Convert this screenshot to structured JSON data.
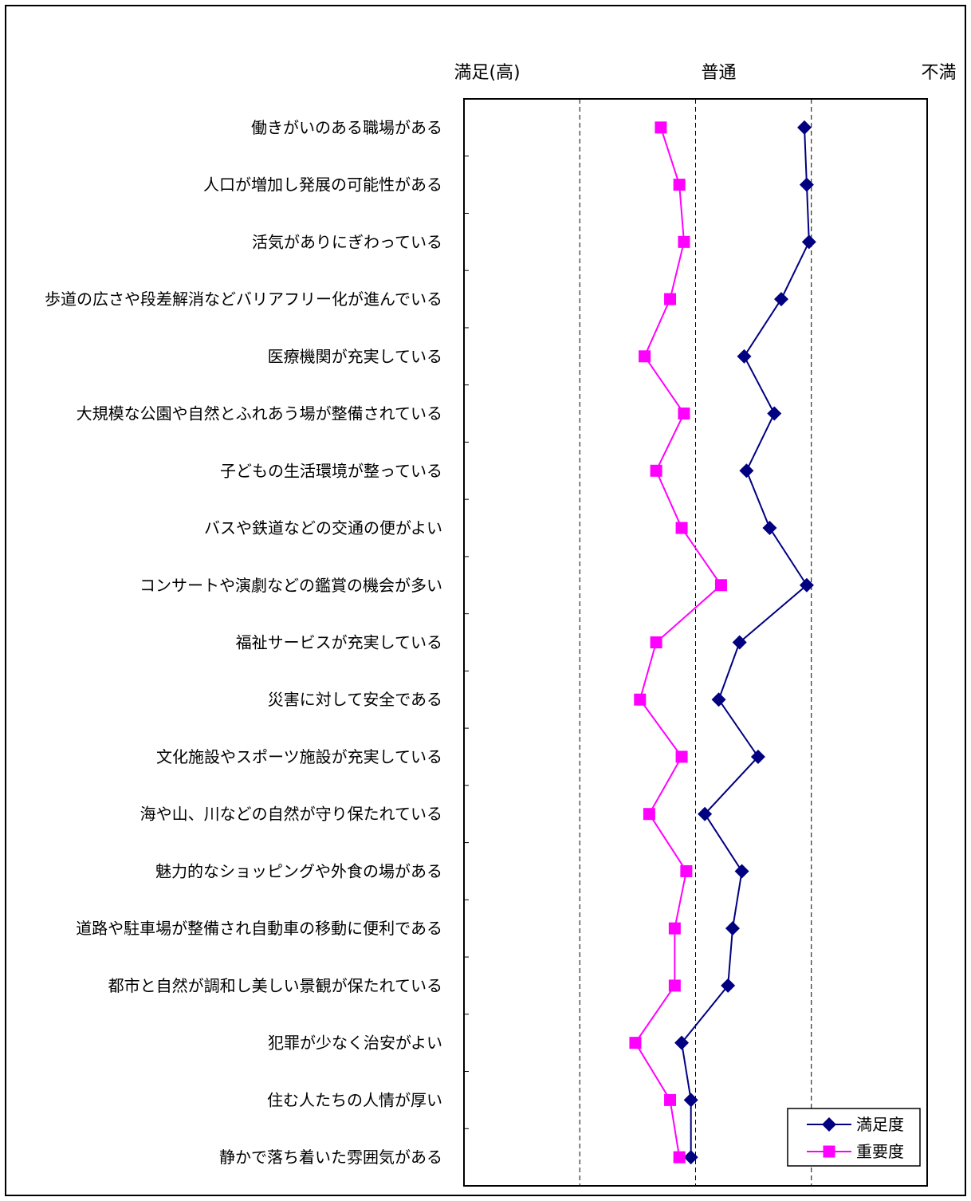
{
  "chart_data": {
    "type": "line",
    "orientation": "horizontal-value-axis",
    "scale_labels": {
      "left": "満足(高)",
      "middle": "普通",
      "right": "不満"
    },
    "xlim": [
      -1,
      1
    ],
    "grid": "dashed vertical",
    "categories": [
      "働きがいのある職場がある",
      "人口が増加し発展の可能性がある",
      "活気がありにぎわっている",
      "歩道の広さや段差解消などバリアフリー化が進んでいる",
      "医療機関が充実している",
      "大規模な公園や自然とふれあう場が整備されている",
      "子どもの生活環境が整っている",
      "バスや鉄道などの交通の便がよい",
      "コンサートや演劇などの鑑賞の機会が多い",
      "福祉サービスが充実している",
      "災害に対して安全である",
      "文化施設やスポーツ施設が充実している",
      "海や山、川などの自然が守り保たれている",
      "魅力的なショッピングや外食の場がある",
      "道路や駐車場が整備され自動車の移動に便利である",
      "都市と自然が調和し美しい景観が保たれている",
      "犯罪が少なく治安がよい",
      "住む人たちの人情が厚い",
      "静かで落ち着いた雰囲気がある"
    ],
    "series": [
      {
        "name": "満足度",
        "color": "#000080",
        "marker": "diamond",
        "values": [
          0.47,
          0.48,
          0.49,
          0.37,
          0.21,
          0.34,
          0.22,
          0.32,
          0.48,
          0.19,
          0.1,
          0.27,
          0.04,
          0.2,
          0.16,
          0.14,
          -0.06,
          -0.02,
          -0.02
        ]
      },
      {
        "name": "重要度",
        "color": "#ff00ff",
        "marker": "square",
        "values": [
          -0.15,
          -0.07,
          -0.05,
          -0.11,
          -0.22,
          -0.05,
          -0.17,
          -0.06,
          0.11,
          -0.17,
          -0.24,
          -0.06,
          -0.2,
          -0.04,
          -0.09,
          -0.09,
          -0.26,
          -0.11,
          -0.07
        ]
      }
    ],
    "legend_position": "bottom-right"
  }
}
